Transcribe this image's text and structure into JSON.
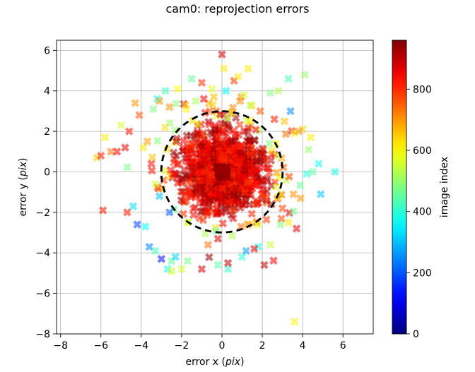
{
  "chart_data": {
    "type": "scatter",
    "title": "cam0: reprojection errors",
    "xlabel": "error x (pix)",
    "xlabel_prefix": "error x (",
    "xlabel_italic": "pix",
    "xlabel_suffix": ")",
    "ylabel": "error y (pix)",
    "ylabel_prefix": "error y (",
    "ylabel_italic": "pix",
    "ylabel_suffix": ")",
    "xlim": [
      -8.2,
      7.5
    ],
    "ylim": [
      -8.0,
      6.5
    ],
    "xticks": [
      -8,
      -6,
      -4,
      -2,
      0,
      2,
      4,
      6
    ],
    "yticks": [
      -8,
      -6,
      -4,
      -2,
      0,
      2,
      4,
      6
    ],
    "grid": true,
    "marker": "X",
    "colormap": "jet",
    "colorbar": {
      "label": "image index",
      "range": [
        0,
        960
      ],
      "ticks": [
        0,
        200,
        400,
        600,
        800
      ]
    },
    "circle": {
      "center": [
        0,
        0
      ],
      "radius": 3,
      "style": "dashed",
      "color": "#000000"
    },
    "series": [
      {
        "x": [
          -6.2,
          -5.8,
          -6.0,
          -5.5,
          -5.2,
          -5.0,
          -4.8,
          -4.6,
          -4.3,
          -4.1,
          -3.9,
          -3.7,
          -3.5,
          -3.3,
          -3.1,
          -5.9,
          -4.4,
          -4.2,
          -3.8,
          -3.6,
          -3.3,
          -3.0,
          -2.7,
          -2.5,
          -2.3,
          -2.6,
          -2.0,
          -1.7,
          -1.0,
          -0.2,
          0.3,
          1.0,
          1.2,
          1.8,
          2.4,
          2.9,
          3.3,
          3.0,
          3.7,
          3.9,
          4.2,
          4.5,
          4.8,
          5.6,
          4.9,
          4.3,
          3.6,
          4.0,
          3.4,
          2.8,
          1.3,
          0.6,
          0.1,
          -0.5,
          -1.0,
          -1.5,
          -2.2,
          -2.8,
          -3.2,
          -3.4,
          -2.6,
          -1.8,
          -1.3,
          -0.9,
          -0.4,
          0.2,
          0.9,
          1.4,
          1.9,
          2.6,
          3.1,
          3.8,
          4.1,
          3.3,
          2.4,
          1.1,
          0.0,
          0.3,
          -0.2,
          3.6,
          -2.5,
          -1.7,
          2.1,
          -0.6,
          0.8,
          -3.1,
          4.4,
          -4.7,
          1.6
        ],
        "y": [
          0.7,
          1.7,
          0.8,
          1.0,
          1.0,
          2.3,
          1.2,
          2.0,
          3.4,
          2.8,
          1.2,
          1.5,
          0.4,
          -0.6,
          -1.2,
          -1.9,
          -1.7,
          -2.6,
          -2.7,
          -3.7,
          -3.9,
          -4.3,
          -4.8,
          -4.4,
          -4.2,
          -2.0,
          -4.8,
          -4.4,
          -4.8,
          -4.6,
          -4.8,
          -4.2,
          -3.9,
          -3.7,
          -3.6,
          -2.6,
          -2.5,
          -1.8,
          -2.8,
          -1.3,
          -0.1,
          0.0,
          0.4,
          0.0,
          -1.1,
          1.1,
          1.9,
          2.1,
          3.0,
          4.0,
          5.1,
          4.5,
          5.1,
          4.1,
          4.4,
          4.6,
          4.1,
          4.0,
          3.6,
          3.1,
          3.2,
          3.3,
          3.5,
          3.6,
          3.7,
          4.0,
          3.5,
          3.3,
          3.0,
          2.6,
          2.5,
          2.0,
          4.8,
          4.6,
          3.9,
          3.8,
          5.8,
          -4.5,
          -3.3,
          -7.4,
          -4.9,
          -2.5,
          -4.6,
          3.0,
          4.7,
          3.5,
          1.7,
          -2.0,
          -3.8
        ],
        "c": [
          650,
          620,
          810,
          730,
          840,
          560,
          860,
          820,
          700,
          760,
          620,
          690,
          830,
          560,
          300,
          820,
          330,
          180,
          360,
          240,
          420,
          130,
          380,
          450,
          320,
          200,
          560,
          470,
          880,
          440,
          410,
          400,
          270,
          380,
          550,
          480,
          620,
          780,
          860,
          700,
          390,
          450,
          370,
          380,
          310,
          500,
          590,
          640,
          250,
          530,
          620,
          790,
          620,
          580,
          800,
          450,
          600,
          420,
          380,
          480,
          700,
          650,
          520,
          840,
          660,
          360,
          720,
          540,
          760,
          820,
          660,
          700,
          500,
          430,
          480,
          560,
          880,
          900,
          880,
          610,
          560,
          600,
          900,
          760,
          620,
          700,
          620,
          820,
          860
        ]
      }
    ]
  }
}
